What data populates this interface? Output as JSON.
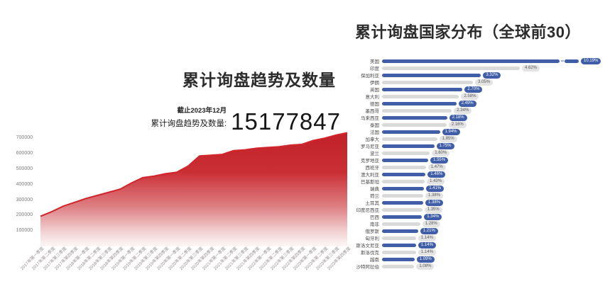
{
  "page": {
    "background": "#ffffff"
  },
  "trend_section": {
    "title": "累计询盘趋势及数量",
    "as_of_label": "截止2023年12月",
    "stat_label": "累计询盘趋势及数量:",
    "total_value": "15177847"
  },
  "bar_section": {
    "title": "累计询盘国家分布（全球前30）"
  },
  "colors": {
    "trend_line_red": "#d2252b",
    "trend_fill_top_red": "#c1212a",
    "bar_blue": "#3f5ea7",
    "bar_gray": "#d9d9d9",
    "pill_blue_bg": "#3f5ea7",
    "pill_blue_text": "#ffffff",
    "pill_gray_bg": "#e3e3e3",
    "pill_gray_text": "#5a5a5a",
    "axis_text": "#7d7d7d"
  },
  "chart_data": [
    {
      "type": "area",
      "title": "累计询盘趋势及数量",
      "x": [
        "2017年第一季度",
        "2017年第二季度",
        "2017年第三季度",
        "2017年第四季度",
        "2018年第一季度",
        "2018年第二季度",
        "2018年第三季度",
        "2018年第四季度",
        "2019年第一季度",
        "2019年第二季度",
        "2019年第三季度",
        "2019年第四季度",
        "2020年第一季度",
        "2020年第二季度",
        "2020年第三季度",
        "2020年第四季度",
        "2021年第一季度",
        "2021年第二季度",
        "2021年第三季度",
        "2021年第四季度",
        "2022年第一季度",
        "2022年第二季度",
        "2022年第三季度",
        "2022年第四季度",
        "2023年第一季度",
        "2023年第二季度",
        "2023年第三季度",
        "2023年第四季度"
      ],
      "values": [
        195000,
        225000,
        260000,
        285000,
        310000,
        330000,
        350000,
        370000,
        410000,
        445000,
        455000,
        470000,
        480000,
        520000,
        585000,
        590000,
        595000,
        620000,
        625000,
        635000,
        640000,
        645000,
        655000,
        660000,
        685000,
        700000,
        720000,
        735000
      ],
      "yticks": [
        100000,
        200000,
        300000,
        400000,
        500000,
        600000,
        700000
      ],
      "ylim": [
        0,
        742000
      ],
      "grid": false,
      "legend": false,
      "fill_style": "vertical red gradient fading to white"
    },
    {
      "type": "bar",
      "orientation": "horizontal",
      "title": "累计询盘国家分布（全球前30）",
      "categories": [
        "美国",
        "印度",
        "保加利亚",
        "伊朗",
        "英国",
        "意大利",
        "德国",
        "墨西哥",
        "马来西亚",
        "泰国",
        "法国",
        "加拿大",
        "罗马尼亚",
        "波兰",
        "克罗地亚",
        "西班牙",
        "澳大利亚",
        "巴基斯坦",
        "瑞典",
        "荷兰",
        "土耳其",
        "印度尼西亚",
        "巴西",
        "南非",
        "俄罗斯",
        "匈牙利",
        "斯洛文尼亚",
        "斯洛伐克",
        "越南",
        "沙特阿拉伯"
      ],
      "values": [
        10.19,
        4.62,
        3.32,
        3.05,
        2.7,
        2.58,
        2.49,
        2.34,
        2.18,
        2.16,
        1.94,
        1.85,
        1.75,
        1.6,
        1.55,
        1.47,
        1.46,
        1.43,
        1.41,
        1.38,
        1.38,
        1.35,
        1.34,
        1.28,
        1.21,
        1.14,
        1.14,
        1.14,
        1.09,
        1.08
      ],
      "value_labels": [
        "10.19%",
        "4.62%",
        "3.32%",
        "3.05%",
        "2.70%",
        "2.58%",
        "2.49%",
        "2.34%",
        "2.18%",
        "2.16%",
        "1.94%",
        "1.85%",
        "1.75%",
        "1.60%",
        "1.55%",
        "1.47%",
        "1.46%",
        "1.43%",
        "1.41%",
        "1.38%",
        "1.38%",
        "1.35%",
        "1.34%",
        "1.28%",
        "1.21%",
        "1.14%",
        "1.14%",
        "1.14%",
        "1.09%",
        "1.08%"
      ],
      "bar_color_pattern": "alternating blue/gray by row",
      "first_bar_truncated_with_axis_break": true,
      "legend": false
    }
  ]
}
